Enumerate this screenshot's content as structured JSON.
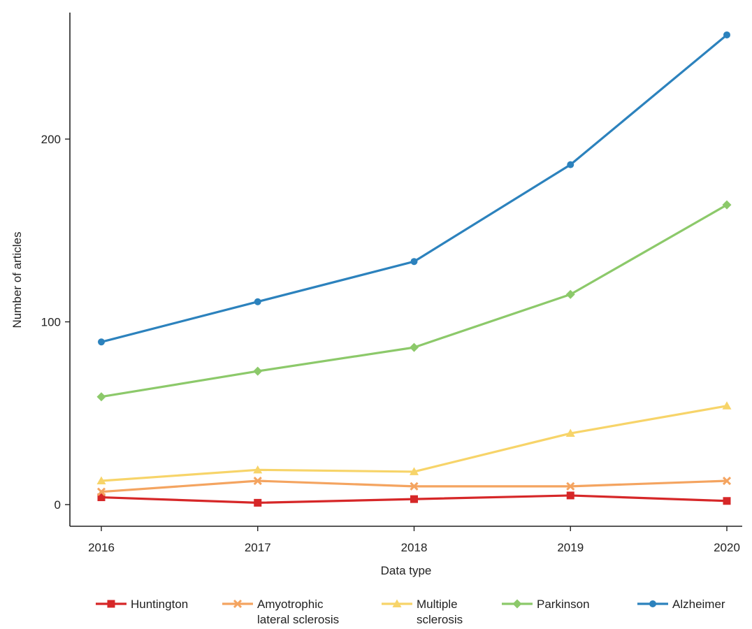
{
  "chart_data": {
    "type": "line",
    "title": "",
    "xlabel": "Data type",
    "ylabel": "Number of articles",
    "x": [
      "2016",
      "2017",
      "2018",
      "2019",
      "2020"
    ],
    "ylim": [
      -12,
      270
    ],
    "yticks": [
      0,
      100,
      200
    ],
    "grid": false,
    "legend_position": "bottom",
    "series": [
      {
        "name": "Huntington",
        "name_lines": [
          "Huntington"
        ],
        "color": "#d62728",
        "marker": "square",
        "values": [
          4,
          1,
          3,
          5,
          2
        ]
      },
      {
        "name": "Amyotrophic lateral sclerosis",
        "name_lines": [
          "Amyotrophic",
          "lateral sclerosis"
        ],
        "color": "#f4a460",
        "marker": "x",
        "values": [
          7,
          13,
          10,
          10,
          13
        ]
      },
      {
        "name": "Multiple sclerosis",
        "name_lines": [
          "Multiple",
          "sclerosis"
        ],
        "color": "#f7d469",
        "marker": "triangle",
        "values": [
          13,
          19,
          18,
          39,
          54
        ]
      },
      {
        "name": "Parkinson",
        "name_lines": [
          "Parkinson"
        ],
        "color": "#8cc96a",
        "marker": "diamond",
        "values": [
          59,
          73,
          86,
          115,
          164
        ]
      },
      {
        "name": "Alzheimer",
        "name_lines": [
          "Alzheimer"
        ],
        "color": "#2c82bd",
        "marker": "circle",
        "values": [
          89,
          111,
          133,
          186,
          257
        ]
      }
    ]
  }
}
